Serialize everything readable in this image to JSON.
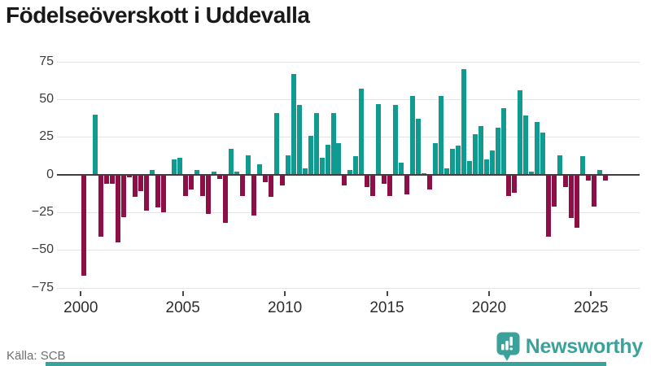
{
  "title": "Födelseöverskott i Uddevalla",
  "source": "Källa: SCB",
  "brand": {
    "name": "Newsworthy",
    "color": "#3aa29b"
  },
  "colors": {
    "positive": "#0f9b90",
    "negative": "#8e0f45",
    "gridline": "#e4e4e4",
    "zero_line": "#3f3f3f",
    "title_text": "#191919",
    "axis_label": "#3d3d3d",
    "source_text": "#6f6f6f",
    "accent": "#3aa29b"
  },
  "chart_data": {
    "type": "bar",
    "title": "Födelseöverskott i Uddevalla",
    "xlabel": "",
    "ylabel": "",
    "grid": "horizontal",
    "legend": "none",
    "y_tick_values": [
      75,
      50,
      25,
      0,
      -25,
      -50,
      -75
    ],
    "ylim": [
      -80,
      80
    ],
    "x_tick_labels": [
      "2000",
      "2005",
      "2010",
      "2015",
      "2020",
      "2025"
    ],
    "x_start": 2000.1,
    "x_step_years": 0.279,
    "n_bars": 93,
    "values": [
      -67,
      0,
      40,
      -41,
      -6,
      -6,
      -45,
      -28,
      -2,
      -15,
      -11,
      -24,
      3,
      -22,
      -25,
      0,
      10,
      11,
      -14,
      -10,
      3,
      -14,
      -26,
      2,
      -3,
      -32,
      17,
      2,
      -14,
      13,
      -27,
      7,
      -5,
      -15,
      41,
      -7,
      13,
      67,
      46,
      4,
      26,
      41,
      11,
      20,
      41,
      21,
      -7,
      3,
      12,
      57,
      -8,
      -14,
      47,
      -6,
      -14,
      46,
      8,
      -13,
      52,
      37,
      1,
      -10,
      21,
      52,
      4,
      17,
      19,
      70,
      9,
      27,
      32,
      10,
      16,
      31,
      44,
      -14,
      -12,
      56,
      39,
      2,
      35,
      28,
      -41,
      -21,
      13,
      -8,
      -29,
      -35,
      12,
      -4,
      -21,
      3,
      -4
    ]
  }
}
